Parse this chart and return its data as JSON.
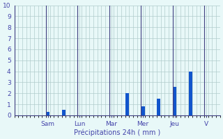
{
  "bar_values": [
    0,
    0,
    0,
    0,
    0,
    0,
    0,
    0,
    0.3,
    0,
    0,
    0,
    0.5,
    0,
    0,
    0,
    0,
    0,
    0,
    0,
    0,
    0,
    0,
    0,
    0,
    0,
    0,
    0,
    2.0,
    0,
    0,
    0,
    0.8,
    0,
    0,
    0,
    1.5,
    0,
    0,
    0,
    2.6,
    0,
    0,
    0,
    4.0,
    0,
    0,
    0,
    0,
    0,
    0,
    0
  ],
  "bar_color": "#1155cc",
  "background_color": "#e8f8f8",
  "grid_color": "#b0cccc",
  "axis_color": "#404080",
  "text_color": "#4444aa",
  "xlabel": "Précipitations 24h ( mm )",
  "ylim": [
    0,
    10
  ],
  "yticks": [
    0,
    1,
    2,
    3,
    4,
    5,
    6,
    7,
    8,
    9,
    10
  ],
  "day_tick_positions": [
    8,
    16,
    24,
    32,
    40,
    48
  ],
  "day_names": [
    "Sam",
    "Lun",
    "Mar",
    "Mer",
    "Jeu",
    "V"
  ],
  "num_bars": 52,
  "bars_per_day": 8
}
